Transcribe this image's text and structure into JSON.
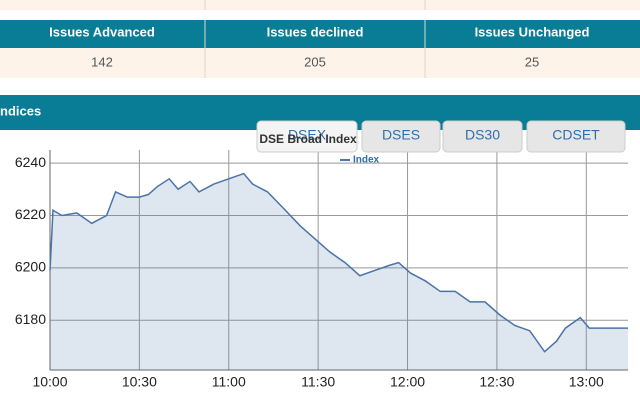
{
  "table": {
    "headers": [
      "Issues Advanced",
      "Issues declined",
      "Issues Unchanged"
    ],
    "values": [
      142,
      205,
      25
    ]
  },
  "section_title": "ndices",
  "tabs": [
    "DSEX",
    "DSES",
    "DS30",
    "CDSET"
  ],
  "chart_data": {
    "type": "area",
    "title": "DSE Broad Index",
    "x": [
      600,
      601,
      604,
      609,
      614,
      619,
      622,
      626,
      630,
      633,
      636,
      640,
      643,
      647,
      650,
      655,
      660,
      665,
      668,
      673,
      679,
      684,
      689,
      694,
      699,
      704,
      709,
      714,
      717,
      721,
      726,
      731,
      736,
      741,
      746,
      751,
      756,
      761,
      766,
      770,
      773,
      778,
      781,
      794
    ],
    "series": [
      {
        "name": "Index",
        "color": "#4a74a8",
        "values": [
          6199,
          6222,
          6220,
          6221,
          6217,
          6220,
          6229,
          6227,
          6227,
          6228,
          6231,
          6234,
          6230,
          6233,
          6229,
          6232,
          6234,
          6236,
          6232,
          6229,
          6222,
          6216,
          6211,
          6206,
          6202,
          6197,
          6199,
          6201,
          6202,
          6198,
          6195,
          6191,
          6191,
          6187,
          6187,
          6182,
          6178,
          6176,
          6168,
          6172,
          6177,
          6181,
          6177,
          6177
        ]
      }
    ],
    "xlim": [
      600,
      794
    ],
    "ylim": [
      6161,
      6245
    ],
    "xticks": [
      {
        "value": 600,
        "label": "10:00"
      },
      {
        "value": 630,
        "label": "10:30"
      },
      {
        "value": 660,
        "label": "11:00"
      },
      {
        "value": 690,
        "label": "11:30"
      },
      {
        "value": 720,
        "label": "12:00"
      },
      {
        "value": 750,
        "label": "12:30"
      },
      {
        "value": 780,
        "label": "13:00"
      }
    ],
    "yticks": [
      6180,
      6200,
      6220,
      6240
    ],
    "grid": true
  }
}
